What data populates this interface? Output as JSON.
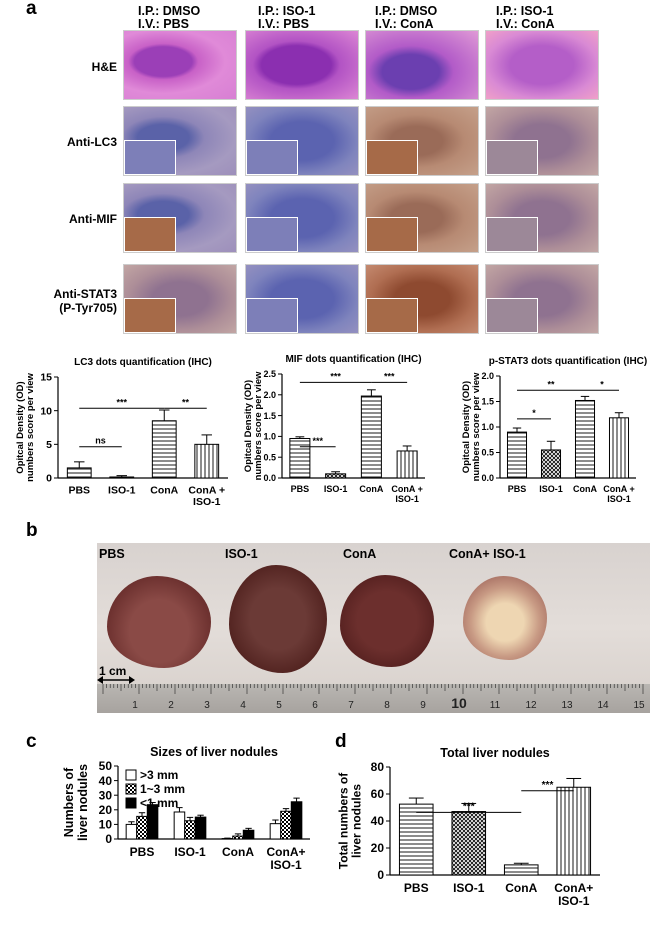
{
  "panel_a": {
    "letter": "a",
    "column_headers": [
      "I.P.: DMSO\nI.V.: PBS",
      "I.P.: ISO-1\nI.V.: PBS",
      "I.P.: DMSO\nI.V.: ConA",
      "I.P.: ISO-1\nI.V.: ConA"
    ],
    "row_labels": [
      "H&E",
      "Anti-LC3",
      "Anti-MIF",
      "Anti-STAT3",
      "(P-Tyr705)"
    ]
  },
  "panel_b": {
    "letter": "b",
    "labels": [
      "PBS",
      "ISO-1",
      "ConA",
      "ConA+ ISO-1"
    ],
    "scale": "1 cm",
    "ruler_numbers": [
      "1",
      "2",
      "3",
      "4",
      "5",
      "6",
      "7",
      "8",
      "9",
      "10",
      "11",
      "12",
      "13",
      "14",
      "15"
    ]
  },
  "panel_c": {
    "letter": "c"
  },
  "panel_d": {
    "letter": "d"
  },
  "chart_data": [
    {
      "type": "bar",
      "title": "LC3 dots quantification (IHC)",
      "ylabel": "Opitcal Density (OD) numbers score per view",
      "categories": [
        "PBS",
        "ISO-1",
        "ConA",
        "ConA + ISO-1"
      ],
      "values": [
        1.5,
        0.15,
        8.5,
        5.0
      ],
      "errors": [
        0.9,
        0.2,
        1.6,
        1.4
      ],
      "ylim": [
        0,
        15
      ],
      "yticks": [
        0,
        5,
        10,
        15
      ],
      "significance": [
        {
          "from": 0,
          "to": 1,
          "label": "ns"
        },
        {
          "from": 0,
          "to": 2,
          "label": "***"
        },
        {
          "from": 2,
          "to": 3,
          "label": "**"
        }
      ]
    },
    {
      "type": "bar",
      "title": "MIF dots quantification (IHC)",
      "ylabel": "Opitcal Density (OD) numbers score per view",
      "categories": [
        "PBS",
        "ISO-1",
        "ConA",
        "ConA + ISO-1"
      ],
      "values": [
        0.95,
        0.1,
        1.97,
        0.65
      ],
      "errors": [
        0.04,
        0.05,
        0.15,
        0.12
      ],
      "ylim": [
        0,
        2.5
      ],
      "yticks": [
        0.0,
        0.5,
        1.0,
        1.5,
        2.0,
        2.5
      ],
      "significance": [
        {
          "from": 0,
          "to": 1,
          "label": "***"
        },
        {
          "from": 0,
          "to": 2,
          "label": "***"
        },
        {
          "from": 2,
          "to": 3,
          "label": "***"
        }
      ]
    },
    {
      "type": "bar",
      "title": "p-STAT3 dots quantification (IHC)",
      "ylabel": "Opitcal Density (OD) numbers score per view",
      "categories": [
        "PBS",
        "ISO-1",
        "ConA",
        "ConA + ISO-1"
      ],
      "values": [
        0.9,
        0.55,
        1.52,
        1.18
      ],
      "errors": [
        0.08,
        0.17,
        0.08,
        0.1
      ],
      "ylim": [
        0,
        2.0
      ],
      "yticks": [
        0.0,
        0.5,
        1.0,
        1.5,
        2.0
      ],
      "significance": [
        {
          "from": 0,
          "to": 1,
          "label": "*"
        },
        {
          "from": 0,
          "to": 2,
          "label": "**"
        },
        {
          "from": 2,
          "to": 3,
          "label": "*"
        }
      ]
    },
    {
      "type": "bar",
      "title": "Sizes of liver nodules",
      "ylabel": "Numbers of liver nodules",
      "categories": [
        "PBS",
        "ISO-1",
        "ConA",
        "ConA+ ISO-1"
      ],
      "series": [
        {
          "name": ">3 mm",
          "values": [
            10,
            18.5,
            0.3,
            10.5
          ],
          "errors": [
            1.8,
            3,
            0.3,
            2.5
          ]
        },
        {
          "name": "1~3 mm",
          "values": [
            15.5,
            12.5,
            2,
            19
          ],
          "errors": [
            2.5,
            2.3,
            1.5,
            1.8
          ]
        },
        {
          "name": "<1 mm",
          "values": [
            23.5,
            15,
            6,
            25.5
          ],
          "errors": [
            1.5,
            1.3,
            1.3,
            2.5
          ]
        }
      ],
      "ylim": [
        0,
        50
      ],
      "yticks": [
        0,
        10,
        20,
        30,
        40,
        50
      ],
      "legend": "top-left"
    },
    {
      "type": "bar",
      "title": "Total liver nodules",
      "ylabel": "Total numbers of liver nodules",
      "categories": [
        "PBS",
        "ISO-1",
        "ConA",
        "ConA+ ISO-1"
      ],
      "values": [
        52.5,
        47,
        7.5,
        65
      ],
      "errors": [
        4.5,
        6,
        1.2,
        6.5
      ],
      "ylim": [
        0,
        80
      ],
      "yticks": [
        0,
        20,
        40,
        60,
        80
      ],
      "significance": [
        {
          "from": 0,
          "to": 2,
          "label": "***"
        },
        {
          "from": 2,
          "to": 3,
          "label": "***"
        }
      ]
    }
  ]
}
